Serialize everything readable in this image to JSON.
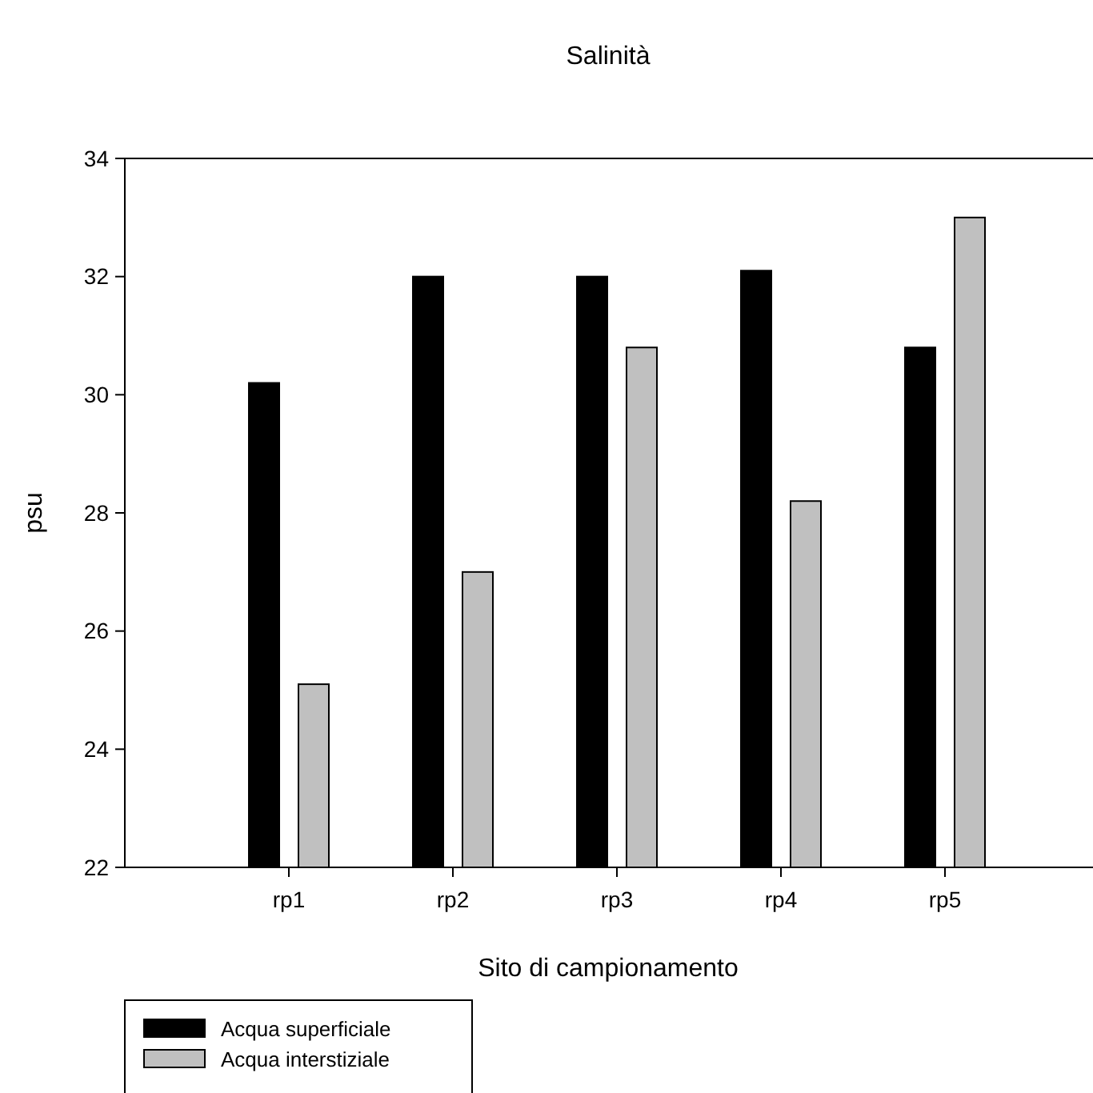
{
  "chart_data": {
    "type": "bar",
    "title": "Salinità",
    "xlabel": "Sito di campionamento",
    "ylabel": "psu",
    "categories": [
      "rp1",
      "rp2",
      "rp3",
      "rp4",
      "rp5"
    ],
    "series": [
      {
        "name": "Acqua superficiale",
        "color": "#000000",
        "values": [
          30.2,
          32.0,
          32.0,
          32.1,
          30.8
        ]
      },
      {
        "name": "Acqua interstiziale",
        "color": "#c0c0c0",
        "values": [
          25.1,
          27.0,
          30.8,
          28.2,
          33.0
        ]
      }
    ],
    "ylim": [
      22,
      34
    ],
    "yticks": [
      22,
      24,
      26,
      28,
      30,
      32,
      34
    ],
    "grid": false,
    "legend": "bottom left"
  }
}
